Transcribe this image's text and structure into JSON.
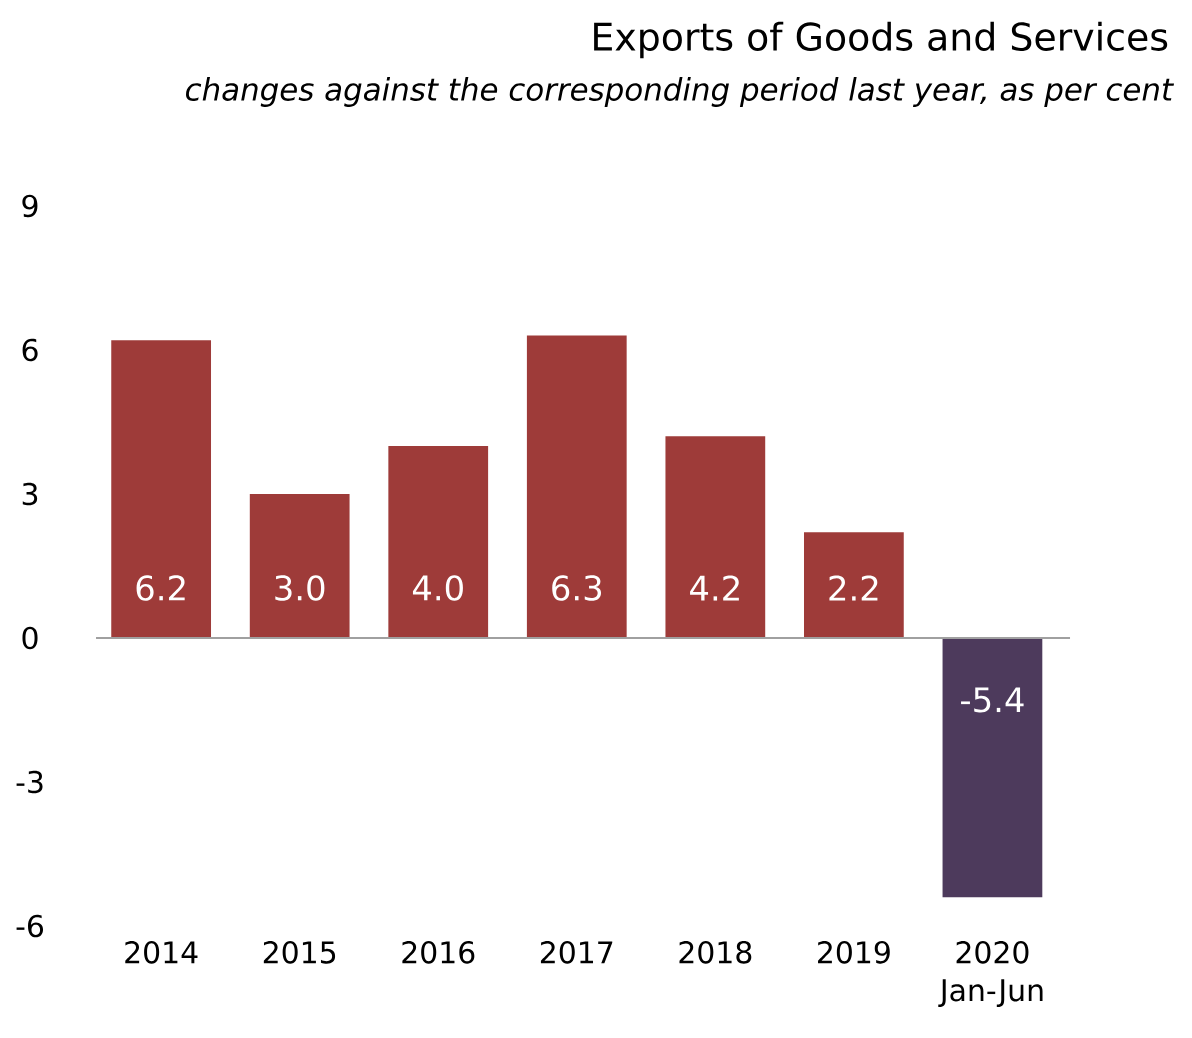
{
  "chart_data": {
    "type": "bar",
    "title": "Exports of Goods and Services",
    "subtitle": "changes against the corresponding period last year, as per cent",
    "categories": [
      "2014",
      "2015",
      "2016",
      "2017",
      "2018",
      "2019",
      "2020 Jan-Jun"
    ],
    "values": [
      6.2,
      3.0,
      4.0,
      6.3,
      4.2,
      2.2,
      -5.4
    ],
    "colors": [
      "#9e3b39",
      "#9e3b39",
      "#9e3b39",
      "#9e3b39",
      "#9e3b39",
      "#9e3b39",
      "#4d3a5c"
    ],
    "value_labels": [
      "6.2",
      "3.0",
      "4.0",
      "6.3",
      "4.2",
      "2.2",
      "-5.4"
    ],
    "ylim": [
      -6,
      9
    ],
    "yticks": [
      -6,
      -3,
      0,
      3,
      6,
      9
    ]
  }
}
